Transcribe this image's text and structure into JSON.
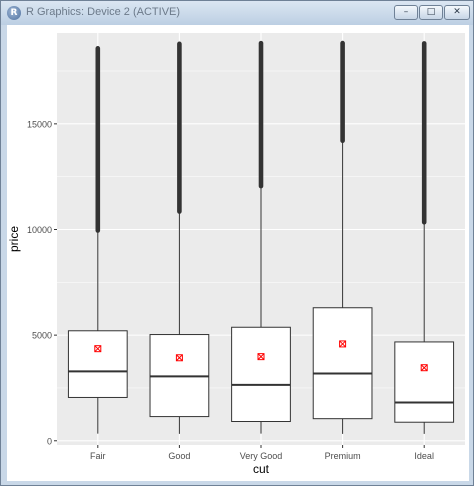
{
  "window": {
    "title": "R Graphics: Device 2 (ACTIVE)",
    "app_icon_glyph": "R",
    "minimize_glyph": "–",
    "maximize_glyph": "□",
    "close_glyph": "✕"
  },
  "colors": {
    "panel_background": "#ebebeb",
    "grid": "#ffffff",
    "box_fill": "#ffffff",
    "box_stroke": "#333333",
    "outlier": "#333333",
    "mean_marker": "#ff0000"
  },
  "chart_data": {
    "type": "boxplot",
    "xlabel": "cut",
    "ylabel": "price",
    "ylim": [
      -200,
      19300
    ],
    "yticks": [
      0,
      5000,
      10000,
      15000
    ],
    "ytick_labels": [
      "0",
      "5000",
      "10000",
      "15000"
    ],
    "grid": true,
    "categories": [
      "Fair",
      "Good",
      "Very Good",
      "Premium",
      "Ideal"
    ],
    "boxes": [
      {
        "category": "Fair",
        "whisker_low": 337,
        "q1": 2050,
        "median": 3282,
        "q3": 5206,
        "whisker_high": 9940,
        "mean": 4359,
        "outlier_min": 9950,
        "outlier_max": 18574
      },
      {
        "category": "Good",
        "whisker_low": 327,
        "q1": 1145,
        "median": 3050,
        "q3": 5028,
        "whisker_high": 10850,
        "mean": 3929,
        "outlier_min": 10850,
        "outlier_max": 18788
      },
      {
        "category": "Very Good",
        "whisker_low": 336,
        "q1": 912,
        "median": 2648,
        "q3": 5373,
        "whisker_high": 12050,
        "mean": 3982,
        "outlier_min": 12050,
        "outlier_max": 18818
      },
      {
        "category": "Premium",
        "whisker_low": 326,
        "q1": 1046,
        "median": 3185,
        "q3": 6296,
        "whisker_high": 14200,
        "mean": 4584,
        "outlier_min": 14200,
        "outlier_max": 18823
      },
      {
        "category": "Ideal",
        "whisker_low": 326,
        "q1": 878,
        "median": 1810,
        "q3": 4678,
        "whisker_high": 10340,
        "mean": 3458,
        "outlier_min": 10340,
        "outlier_max": 18806
      }
    ]
  }
}
